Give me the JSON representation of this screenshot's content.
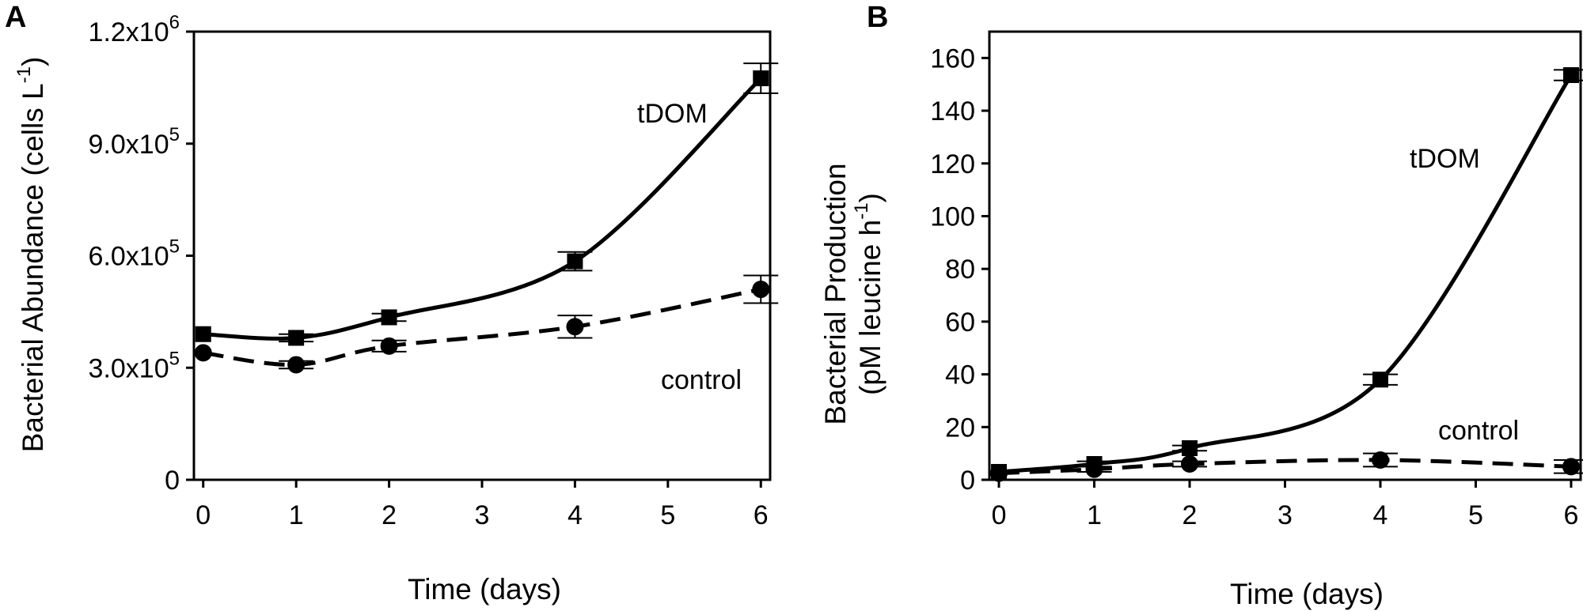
{
  "chart_data": [
    {
      "panel": "A",
      "type": "line",
      "x": [
        0,
        1,
        2,
        4,
        6
      ],
      "xticks": [
        0,
        1,
        2,
        3,
        4,
        5,
        6
      ],
      "xlim": [
        -0.1,
        6.1
      ],
      "ylim": [
        0,
        1200000
      ],
      "yticks": [
        {
          "value": 0,
          "mantissa": "0",
          "exp": ""
        },
        {
          "value": 300000,
          "mantissa": "3.0x10",
          "exp": "5"
        },
        {
          "value": 600000,
          "mantissa": "6.0x10",
          "exp": "5"
        },
        {
          "value": 900000,
          "mantissa": "9.0x10",
          "exp": "5"
        },
        {
          "value": 1200000,
          "mantissa": "1.2x10",
          "exp": "6"
        }
      ],
      "xlabel": "Time (days)",
      "ylabel": {
        "main": "Bacterial Abundance (cells L",
        "sup": "-1",
        "close": ")"
      },
      "series": [
        {
          "name": "tDOM",
          "marker": "square",
          "dash": "solid",
          "values": [
            390000,
            380000,
            435000,
            585000,
            1075000
          ],
          "errors": [
            0,
            10000,
            10000,
            25000,
            40000
          ]
        },
        {
          "name": "control",
          "marker": "circle",
          "dash": "dashed",
          "values": [
            340000,
            308000,
            358000,
            410000,
            510000
          ],
          "errors": [
            0,
            10000,
            15000,
            30000,
            37000
          ]
        }
      ]
    },
    {
      "panel": "B",
      "type": "line",
      "x": [
        0,
        1,
        2,
        4,
        6
      ],
      "xticks": [
        0,
        1,
        2,
        3,
        4,
        5,
        6
      ],
      "xlim": [
        -0.1,
        6.1
      ],
      "ylim": [
        0,
        170
      ],
      "yticks": [
        {
          "value": 0,
          "mantissa": "0",
          "exp": ""
        },
        {
          "value": 20,
          "mantissa": "20",
          "exp": ""
        },
        {
          "value": 40,
          "mantissa": "40",
          "exp": ""
        },
        {
          "value": 60,
          "mantissa": "60",
          "exp": ""
        },
        {
          "value": 80,
          "mantissa": "80",
          "exp": ""
        },
        {
          "value": 100,
          "mantissa": "100",
          "exp": ""
        },
        {
          "value": 120,
          "mantissa": "120",
          "exp": ""
        },
        {
          "value": 140,
          "mantissa": "140",
          "exp": ""
        },
        {
          "value": 160,
          "mantissa": "160",
          "exp": ""
        }
      ],
      "xlabel": "Time (days)",
      "ylabel": {
        "line1": "Bacterial Production",
        "main": "(pM leucine h",
        "sup": "-1",
        "close": ")"
      },
      "series": [
        {
          "name": "tDOM",
          "marker": "square",
          "dash": "solid",
          "values": [
            3,
            6,
            12,
            38,
            153.5
          ],
          "errors": [
            0,
            1,
            1,
            2,
            2
          ]
        },
        {
          "name": "control",
          "marker": "circle",
          "dash": "dashed",
          "values": [
            2.5,
            4,
            6,
            7.5,
            5
          ],
          "errors": [
            0,
            1,
            1,
            2.5,
            2.5
          ]
        }
      ]
    }
  ]
}
